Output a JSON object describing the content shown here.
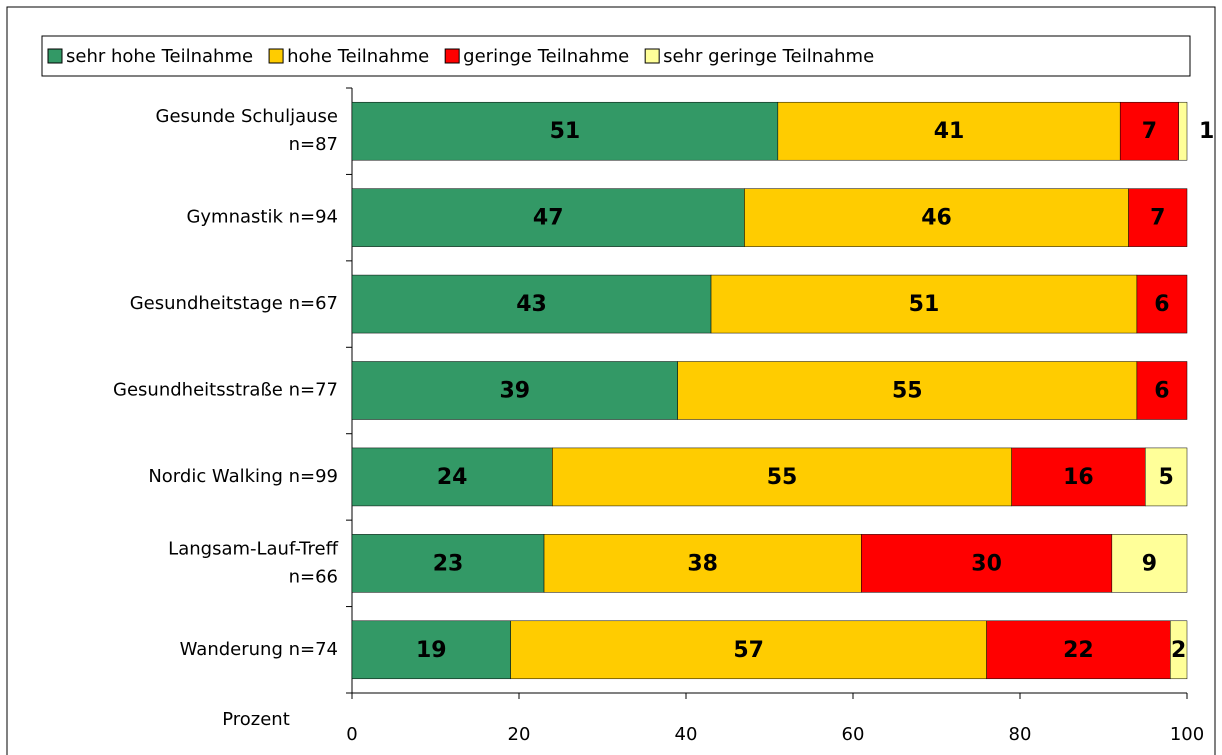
{
  "chart_data": {
    "type": "stacked-barh",
    "categories": [
      "Gesunde Schuljause\nn=87",
      "Gymnastik n=94",
      "Gesundheitstage n=67",
      "Gesundheitsstraße n=77",
      "Nordic Walking n=99",
      "Langsam-Lauf-Treff\nn=66",
      "Wanderung n=74"
    ],
    "series": [
      {
        "name": "sehr hohe Teilnahme",
        "color": "#339966",
        "label_color": "#ffffff",
        "values": [
          51,
          47,
          43,
          39,
          24,
          23,
          19
        ]
      },
      {
        "name": "hohe Teilnahme",
        "color": "#ffcc00",
        "label_color": "#000000",
        "values": [
          41,
          46,
          51,
          55,
          55,
          38,
          57
        ]
      },
      {
        "name": "geringe Teilnahme",
        "color": "#ff0000",
        "label_color": "#ffffff",
        "values": [
          7,
          7,
          6,
          6,
          16,
          30,
          22
        ]
      },
      {
        "name": "sehr geringe Teilnahme",
        "color": "#ffff99",
        "label_color": "#000000",
        "values": [
          1,
          null,
          null,
          null,
          5,
          9,
          2
        ]
      }
    ],
    "xlabel": "Prozent",
    "xlim": [
      0,
      100
    ],
    "xticks": [
      0,
      20,
      40,
      60,
      80,
      100
    ],
    "legend": "top"
  }
}
